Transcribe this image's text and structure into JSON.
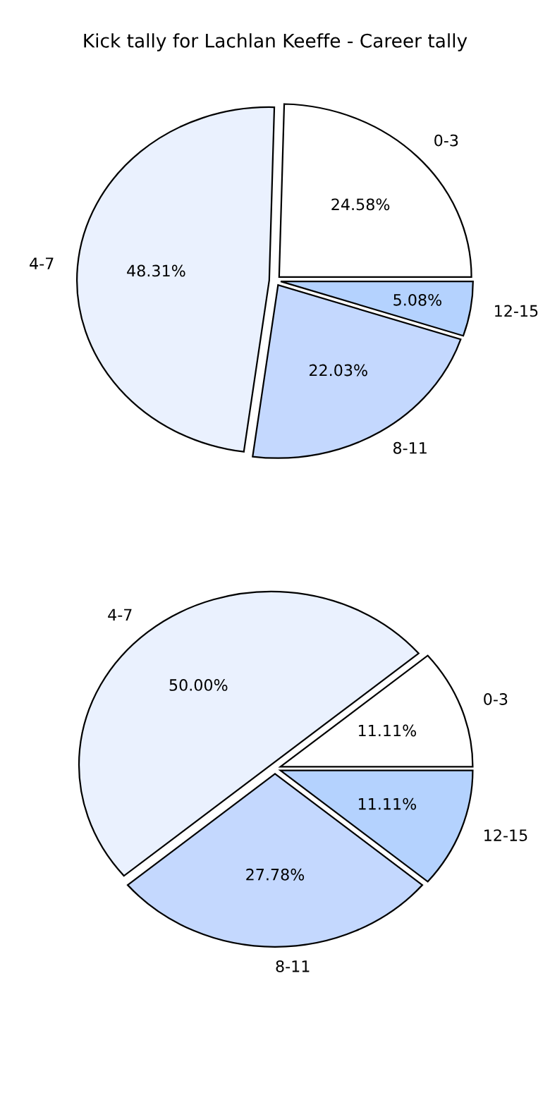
{
  "chart_data": [
    {
      "type": "pie",
      "title": "Kick tally for Lachlan Keeffe - Career tally",
      "categories": [
        "0-3",
        "4-7",
        "8-11",
        "12-15"
      ],
      "values": [
        24.58,
        48.31,
        22.03,
        5.08
      ],
      "value_labels": [
        "24.58%",
        "48.31%",
        "22.03%",
        "5.08%"
      ],
      "colors": [
        "#ffffff",
        "#eaf1fe",
        "#c4d8fe",
        "#b4d2fe"
      ]
    },
    {
      "type": "pie",
      "categories": [
        "0-3",
        "4-7",
        "8-11",
        "12-15"
      ],
      "values": [
        11.11,
        50.0,
        27.78,
        11.11
      ],
      "value_labels": [
        "11.11%",
        "50.00%",
        "27.78%",
        "11.11%"
      ],
      "colors": [
        "#ffffff",
        "#eaf1fe",
        "#c4d8fe",
        "#b4d2fe"
      ]
    }
  ]
}
